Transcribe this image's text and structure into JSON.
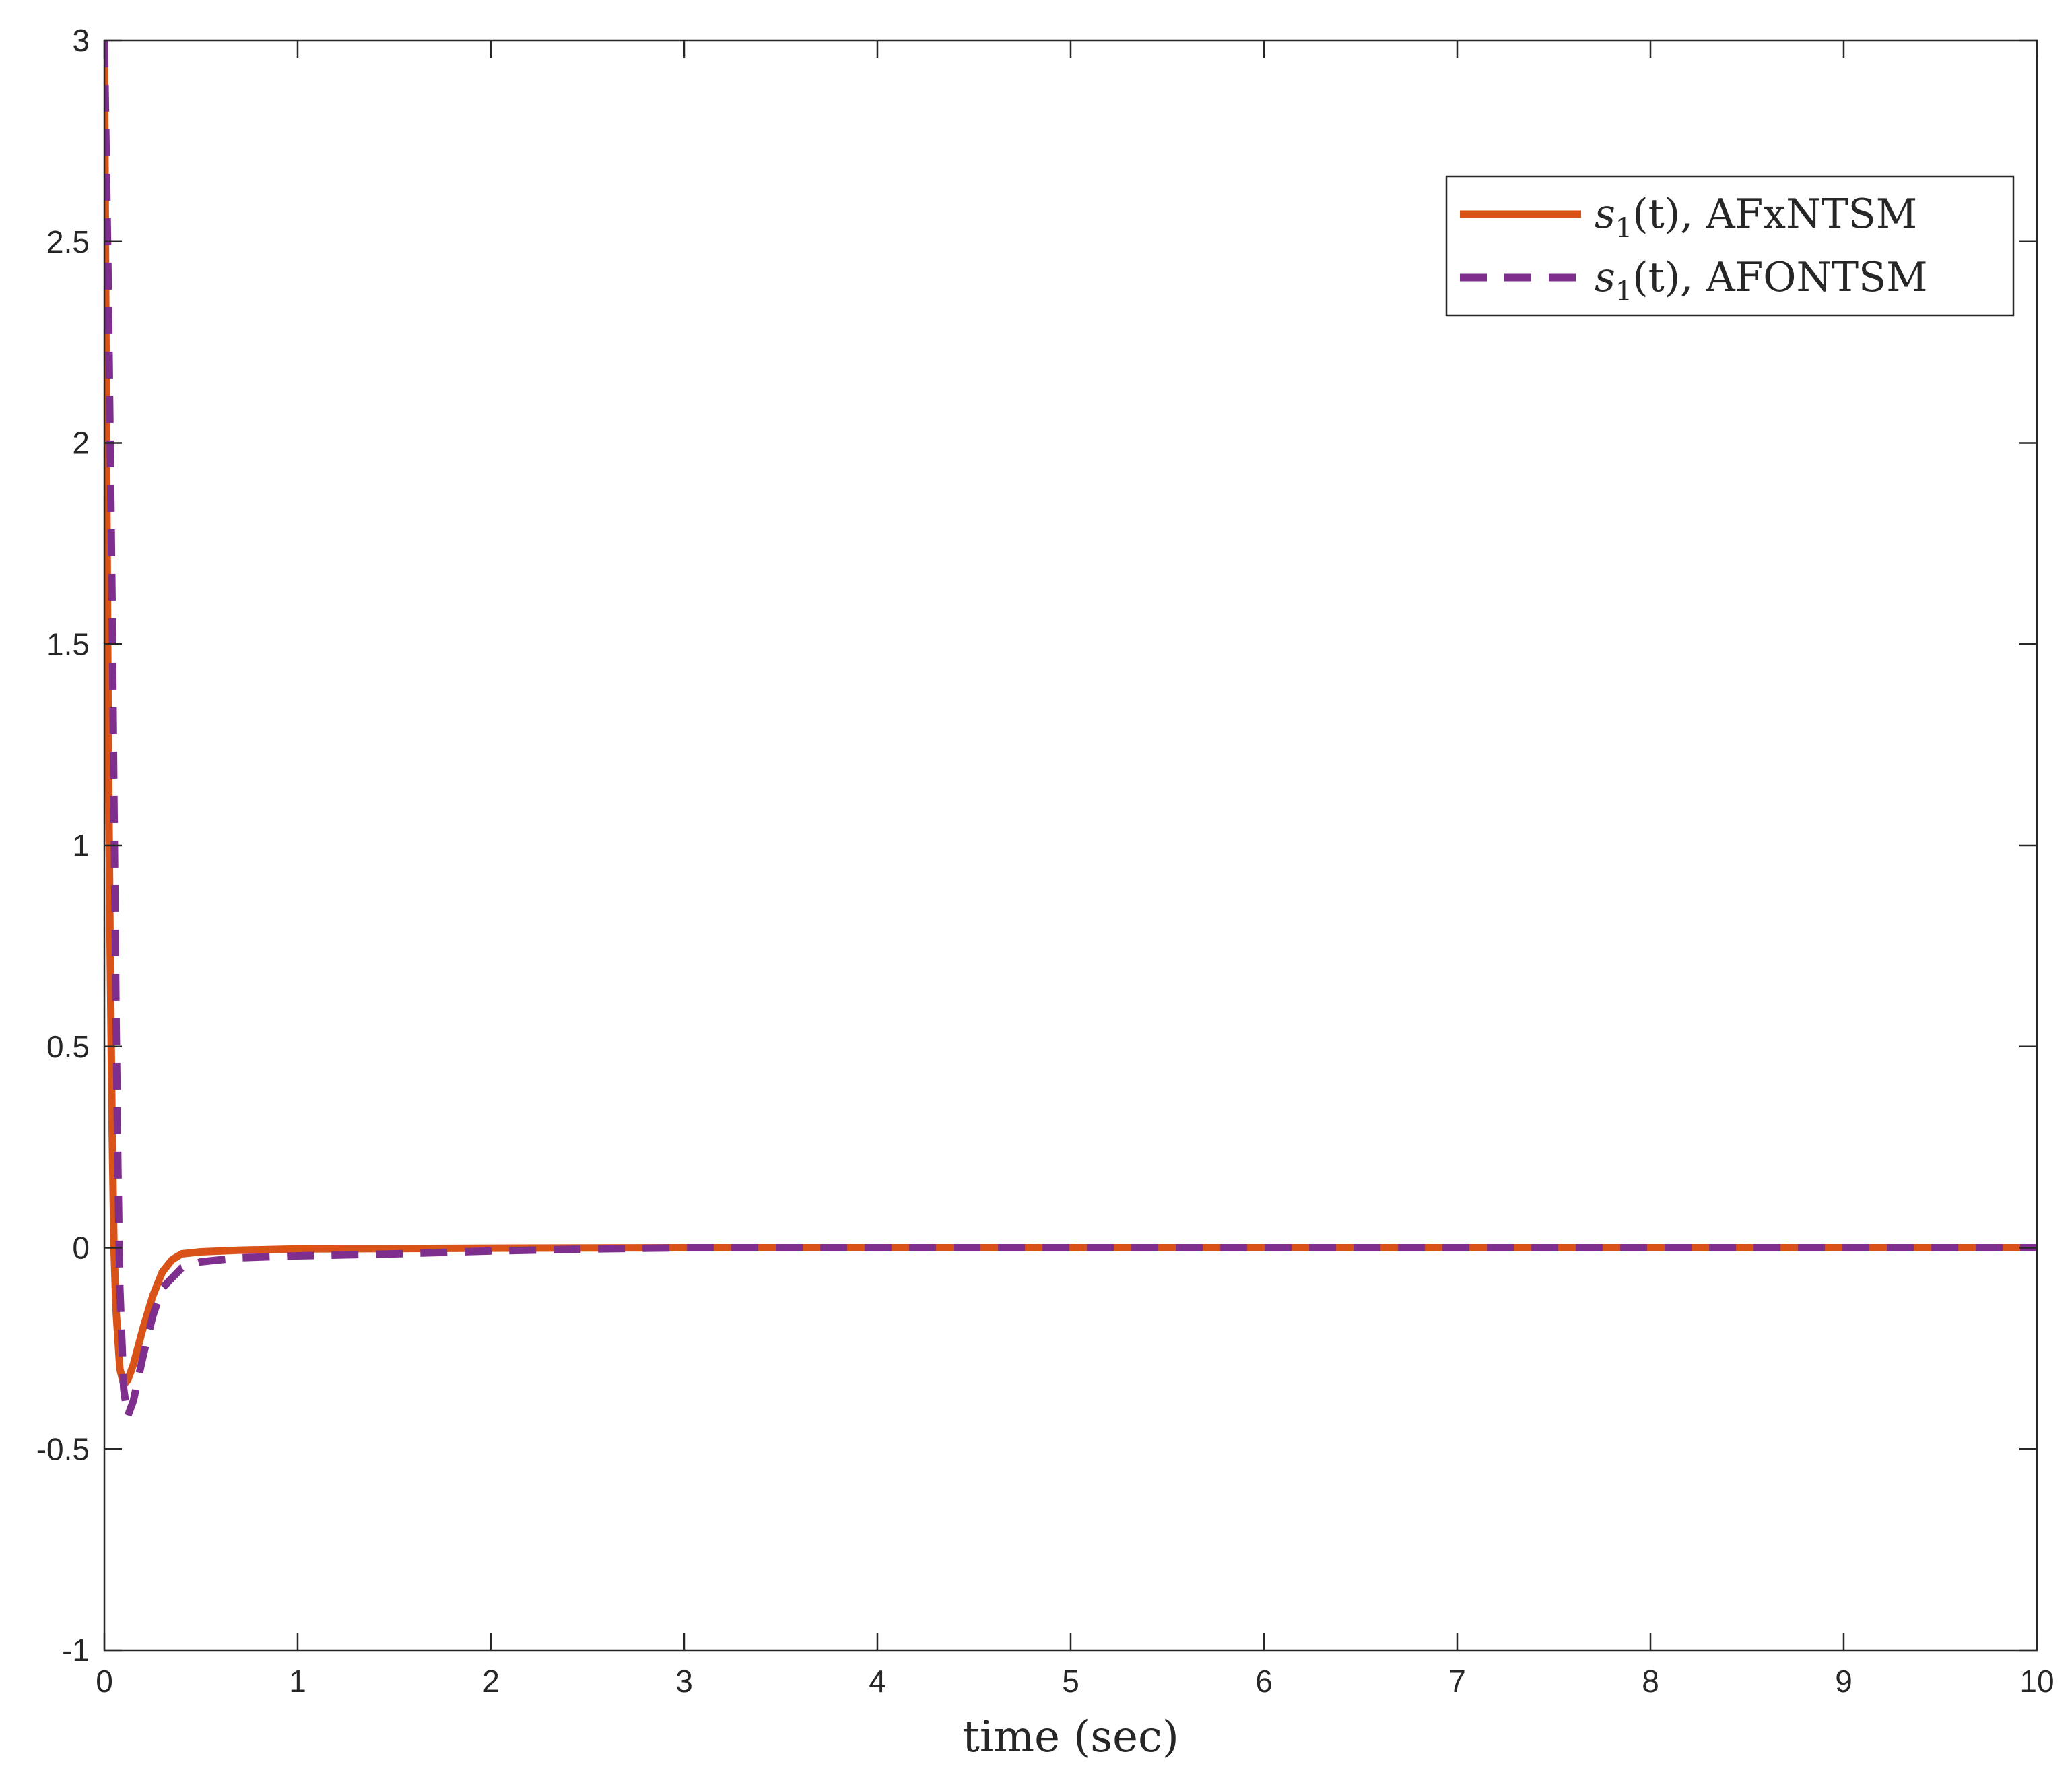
{
  "chart_data": {
    "type": "line",
    "xlabel": "time (sec)",
    "ylabel": "",
    "xlim": [
      0,
      10
    ],
    "ylim": [
      -1,
      3
    ],
    "xticks": [
      "0",
      "1",
      "2",
      "3",
      "4",
      "5",
      "6",
      "7",
      "8",
      "9",
      "10"
    ],
    "yticks": [
      "-1",
      "-0.5",
      "0",
      "0.5",
      "1",
      "1.5",
      "2",
      "2.5",
      "3"
    ],
    "grid": false,
    "legend_position": "top-right",
    "series": [
      {
        "name": "s1(t), AFxNTSM",
        "legend_math": "s",
        "legend_sub": "1",
        "legend_arg": "(t), AFxNTSM",
        "style": "solid",
        "color": "#D95319",
        "x": [
          0,
          0.01,
          0.02,
          0.03,
          0.04,
          0.05,
          0.06,
          0.08,
          0.1,
          0.12,
          0.15,
          0.2,
          0.25,
          0.3,
          0.35,
          0.4,
          0.5,
          0.7,
          1,
          1.5,
          2,
          3,
          4,
          5,
          6,
          7,
          8,
          9,
          10
        ],
        "y": [
          3,
          2.1,
          1.3,
          0.75,
          0.3,
          0.0,
          -0.15,
          -0.3,
          -0.34,
          -0.33,
          -0.29,
          -0.2,
          -0.12,
          -0.06,
          -0.03,
          -0.015,
          -0.01,
          -0.006,
          -0.003,
          -0.002,
          -0.001,
          0,
          0,
          0,
          0,
          0,
          0,
          0,
          0
        ]
      },
      {
        "name": "s1(t), AFONTSM",
        "legend_math": "s",
        "legend_sub": "1",
        "legend_arg": "(t), AFONTSM",
        "style": "dashed",
        "color": "#7E2F8E",
        "x": [
          0,
          0.02,
          0.04,
          0.05,
          0.06,
          0.07,
          0.08,
          0.1,
          0.12,
          0.15,
          0.2,
          0.25,
          0.3,
          0.4,
          0.5,
          0.7,
          1,
          1.5,
          2,
          2.5,
          3,
          4,
          5,
          6,
          7,
          8,
          9,
          10
        ],
        "y": [
          3,
          2.4,
          1.6,
          1.1,
          0.6,
          0.2,
          -0.1,
          -0.35,
          -0.42,
          -0.38,
          -0.27,
          -0.17,
          -0.1,
          -0.05,
          -0.035,
          -0.025,
          -0.02,
          -0.015,
          -0.008,
          -0.003,
          0,
          0,
          0,
          0,
          0,
          0,
          0,
          0
        ]
      }
    ]
  }
}
